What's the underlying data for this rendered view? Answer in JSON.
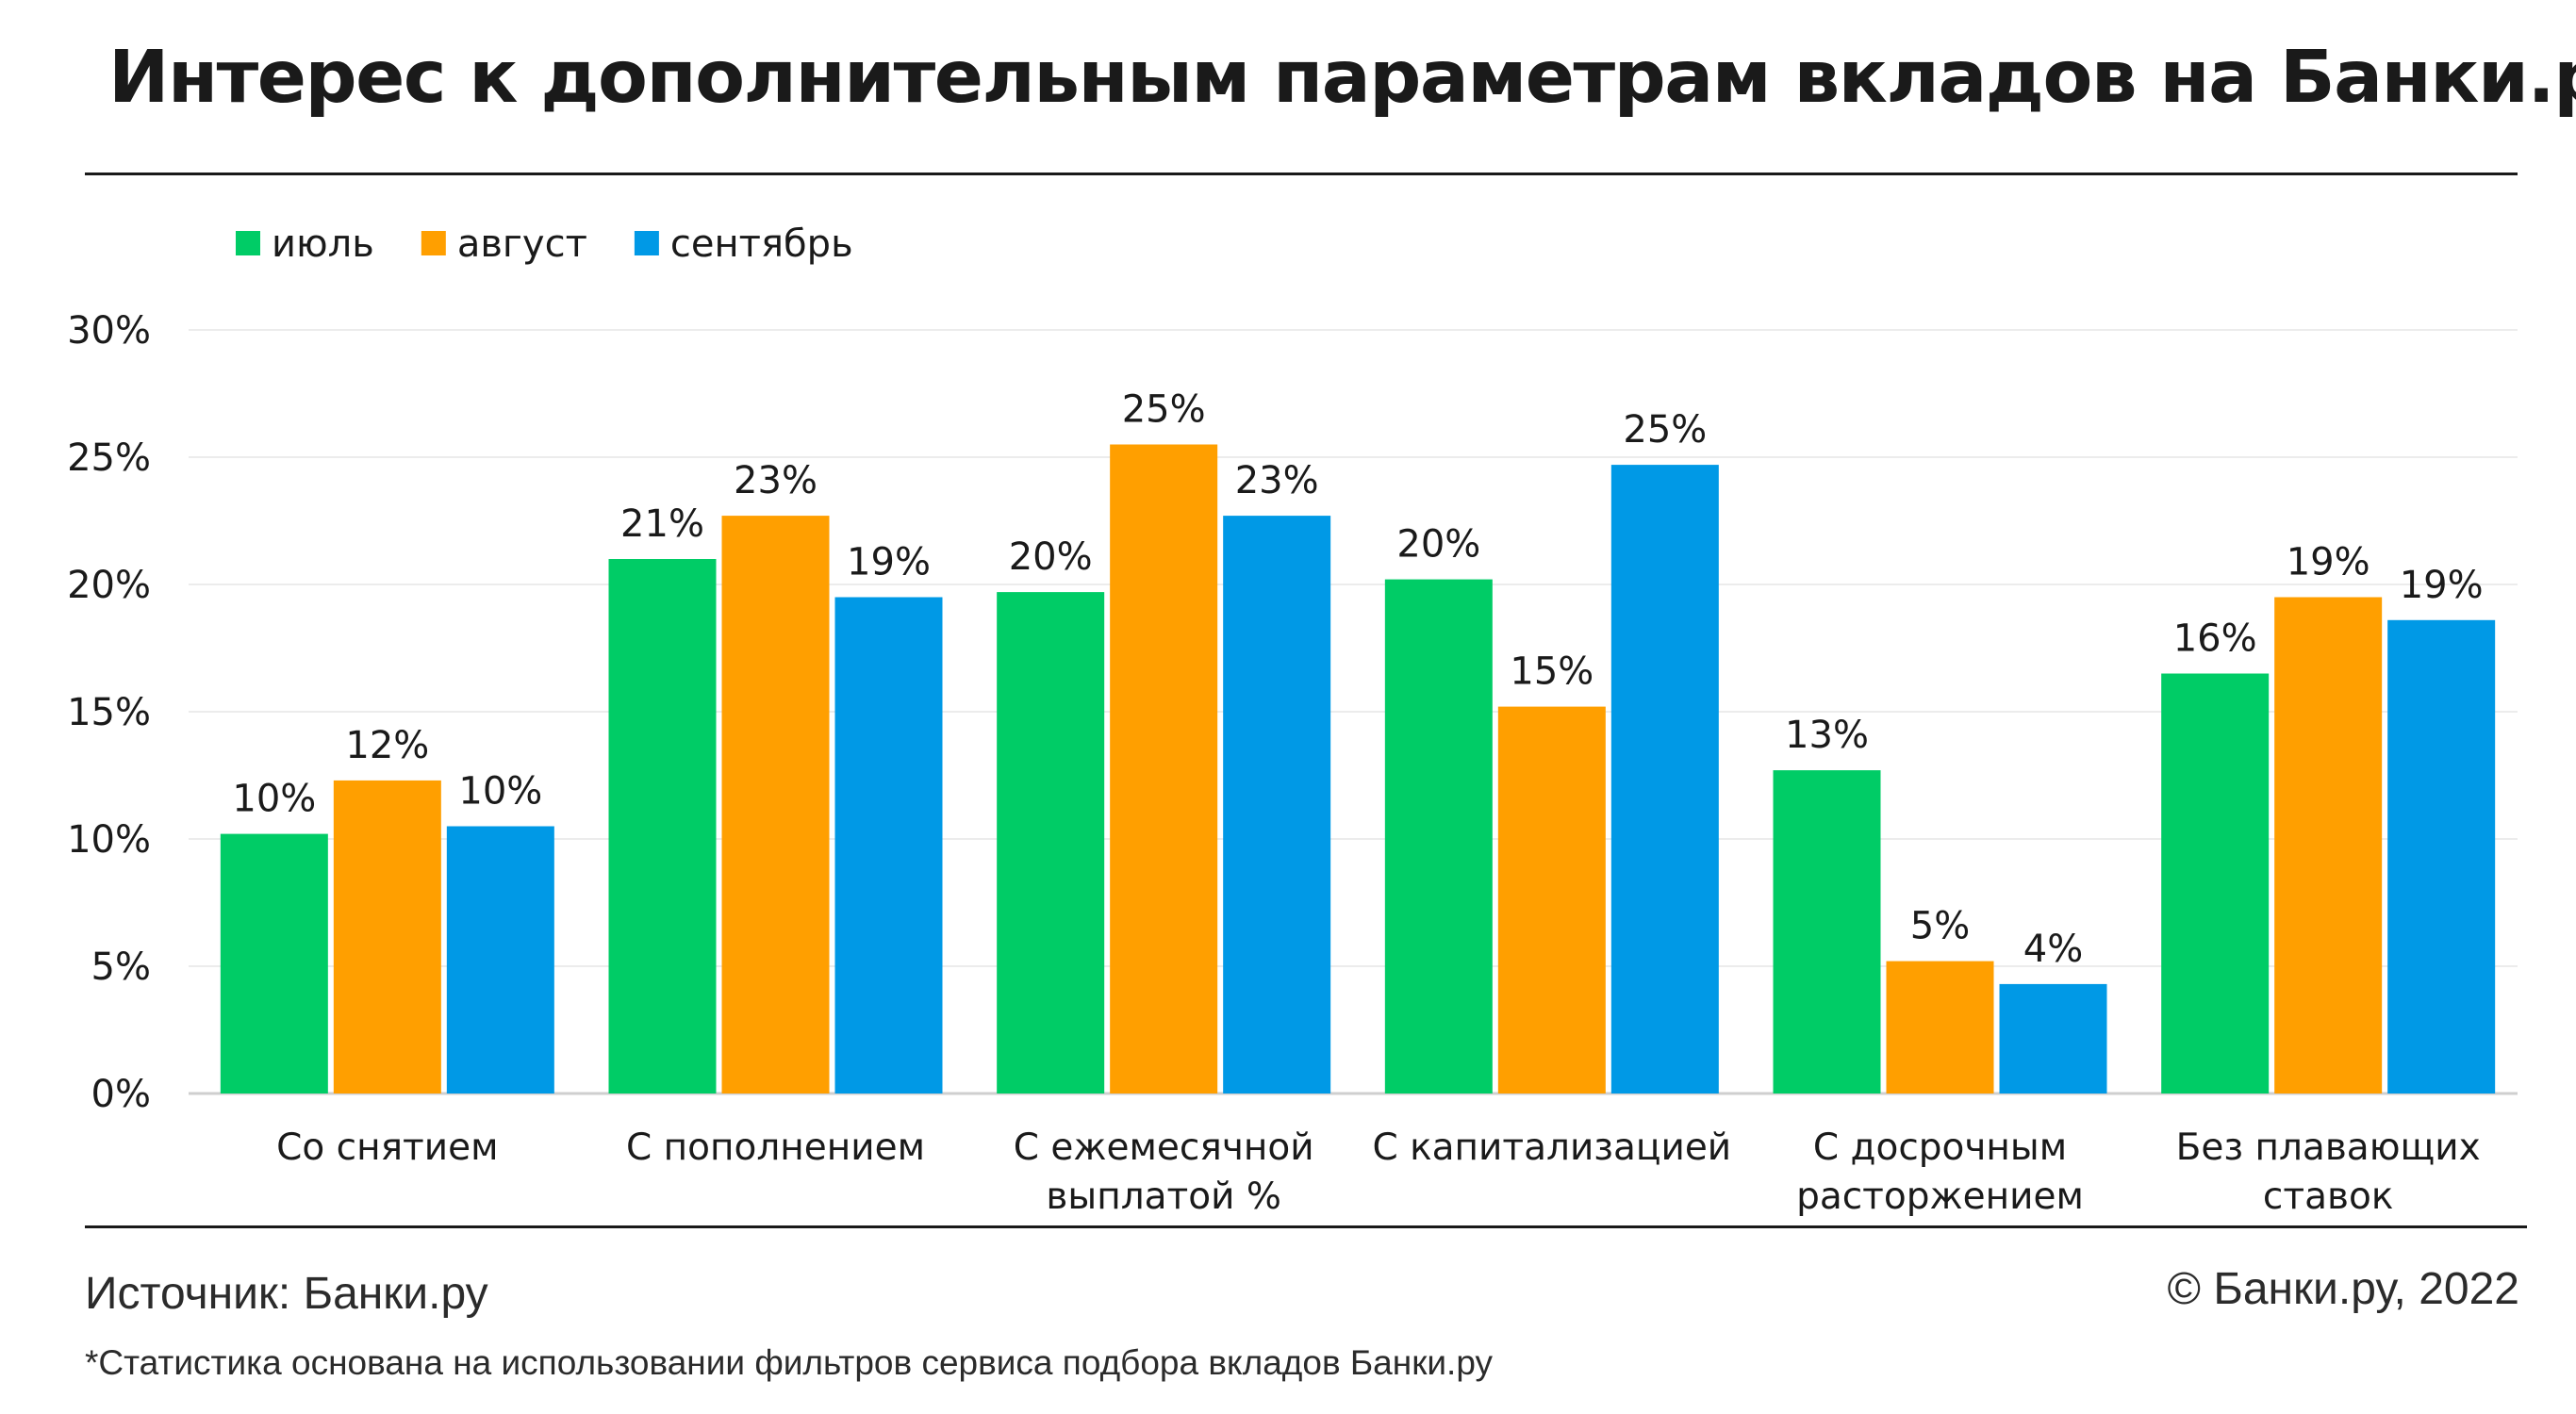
{
  "header": {
    "title": "Интерес к дополнительным параметрам вкладов на Банки.ру*"
  },
  "chart_data": {
    "type": "bar",
    "title": "Интерес к дополнительным параметрам вкладов на Банки.ру*",
    "categories": [
      [
        "Со снятием"
      ],
      [
        "С пополнением"
      ],
      [
        "С ежемесячной",
        "выплатой %"
      ],
      [
        "С капитализацией"
      ],
      [
        "С досрочным",
        "расторжением"
      ],
      [
        "Без плавающих",
        "ставок"
      ]
    ],
    "series": [
      {
        "name": "июль",
        "color": "#00cc66",
        "values": [
          10.2,
          21.0,
          19.7,
          20.2,
          12.7,
          16.5
        ],
        "labels": [
          "10%",
          "21%",
          "20%",
          "20%",
          "13%",
          "16%"
        ]
      },
      {
        "name": "август",
        "color": "#ff9f00",
        "values": [
          12.3,
          22.7,
          25.5,
          15.2,
          5.2,
          19.5
        ],
        "labels": [
          "12%",
          "23%",
          "25%",
          "15%",
          "5%",
          "19%"
        ]
      },
      {
        "name": "сентябрь",
        "color": "#0099e6",
        "values": [
          10.5,
          19.5,
          22.7,
          24.7,
          4.3,
          18.6
        ],
        "labels": [
          "10%",
          "19%",
          "23%",
          "25%",
          "4%",
          "19%"
        ]
      }
    ],
    "yticks": [
      "0%",
      "5%",
      "10%",
      "15%",
      "20%",
      "25%",
      "30%"
    ],
    "ylim": [
      0,
      30
    ],
    "grid": true,
    "legend_position": "top-left"
  },
  "footer": {
    "source": "Источник: Банки.ру",
    "copyright": "© Банки.ру, 2022",
    "footnote": "*Статистика основана на использовании фильтров сервиса подбора вкладов Банки.ру"
  }
}
